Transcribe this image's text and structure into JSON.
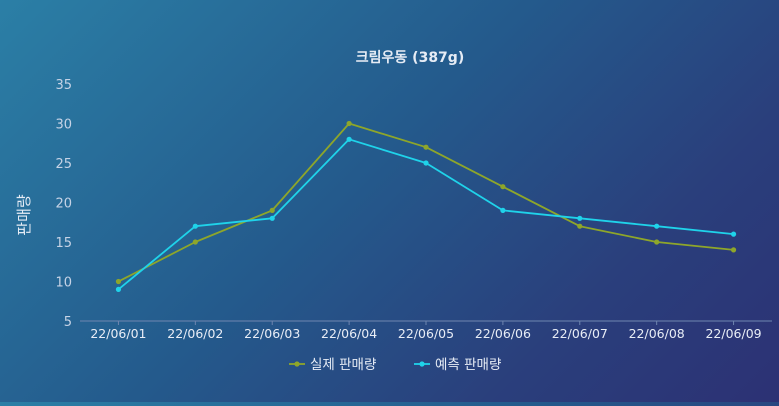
{
  "chart_data": {
    "type": "line",
    "title": "크림우동 (387g)",
    "xlabel": "",
    "ylabel": "판매량",
    "categories": [
      "22/06/01",
      "22/06/02",
      "22/06/03",
      "22/06/04",
      "22/06/05",
      "22/06/06",
      "22/06/07",
      "22/06/08",
      "22/06/09"
    ],
    "ylim": [
      5,
      35
    ],
    "yticks": [
      5,
      10,
      15,
      20,
      25,
      30,
      35
    ],
    "grid": false,
    "legend_position": "bottom",
    "series": [
      {
        "name": "실제 판매량",
        "color": "#8ea62a",
        "values": [
          10,
          15,
          19,
          30,
          27,
          22,
          17,
          15,
          14
        ]
      },
      {
        "name": "예측 판매량",
        "color": "#1fd3ea",
        "values": [
          9,
          17,
          18,
          28,
          25,
          19,
          18,
          17,
          16
        ]
      }
    ]
  }
}
